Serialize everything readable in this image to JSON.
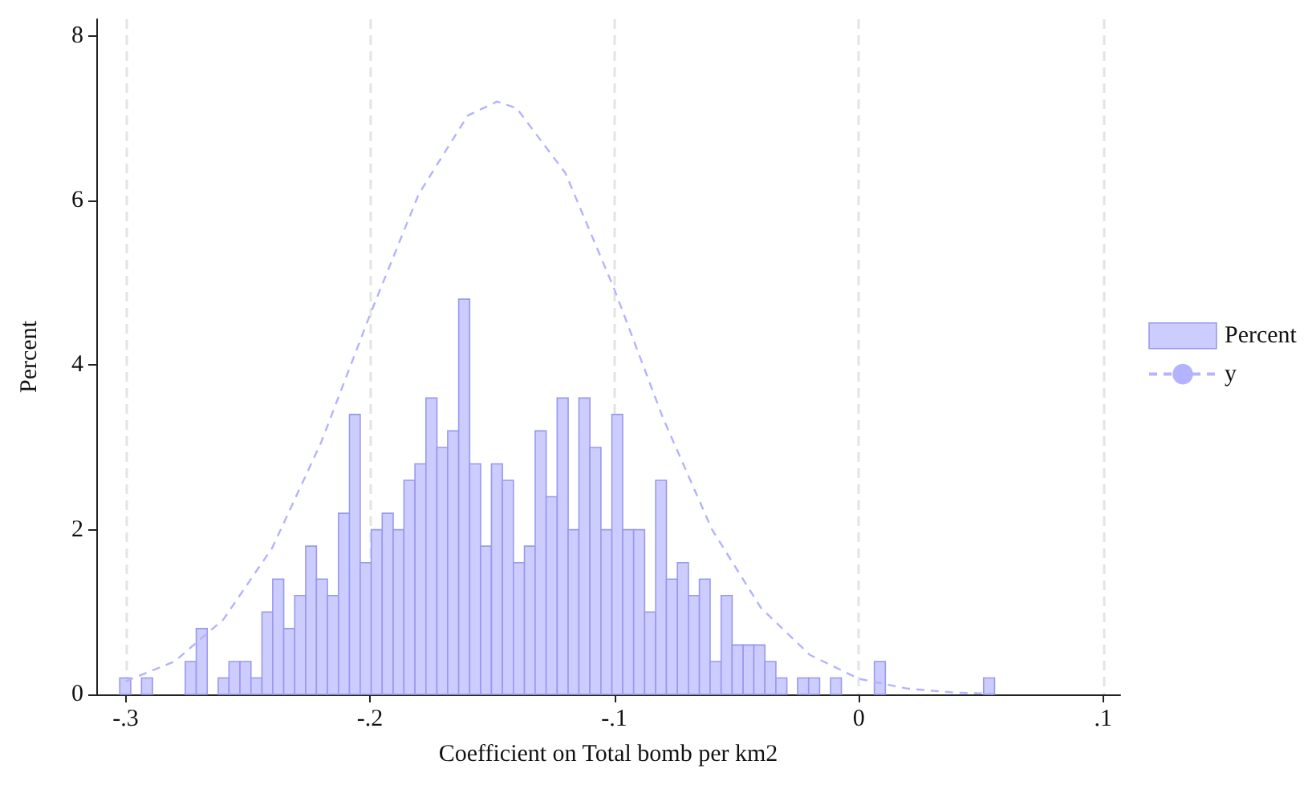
{
  "chart_data": {
    "type": "histogram",
    "xlabel": "Coefficient on Total bomb per km2",
    "ylabel": "Percent",
    "bins": [
      -0.3024,
      -0.2979,
      -0.2935,
      -0.289,
      -0.2845,
      -0.28,
      -0.2756,
      -0.2711,
      -0.2666,
      -0.2621,
      -0.2577,
      -0.2532,
      -0.2487,
      -0.2442,
      -0.2398,
      -0.2353,
      -0.2308,
      -0.2263,
      -0.2219,
      -0.2174,
      -0.2129,
      -0.2084,
      -0.204,
      -0.1995,
      -0.195,
      -0.1905,
      -0.1861,
      -0.1816,
      -0.1771,
      -0.1726,
      -0.1682,
      -0.1637,
      -0.1592,
      -0.1547,
      -0.1503,
      -0.1458,
      -0.1413,
      -0.1368,
      -0.1324,
      -0.1279,
      -0.1234,
      -0.1189,
      -0.1145,
      -0.11,
      -0.1055,
      -0.101,
      -0.0966,
      -0.0921,
      -0.0876,
      -0.0831,
      -0.0787,
      -0.0742,
      -0.0697,
      -0.0652,
      -0.0608,
      -0.0563,
      -0.0518,
      -0.0473,
      -0.0429,
      -0.0384,
      -0.0339,
      -0.0294,
      -0.025,
      -0.0205,
      -0.016,
      -0.0115,
      -0.0071,
      -0.0026,
      0.0019,
      0.0064,
      0.0109,
      0.0153,
      0.0198,
      0.0243,
      0.0288,
      0.0332,
      0.0377,
      0.0422,
      0.0467,
      0.0511,
      0.0556
    ],
    "series": [
      {
        "name": "Percent",
        "color": "#ccccff",
        "values": [
          0.2,
          0,
          0.2,
          0,
          0,
          0,
          0.4,
          0.8,
          0,
          0.2,
          0.4,
          0.4,
          0.2,
          1.0,
          1.4,
          0.8,
          1.2,
          1.8,
          1.4,
          1.2,
          2.2,
          3.4,
          1.6,
          2.0,
          2.2,
          2.0,
          2.6,
          2.8,
          3.6,
          3.0,
          3.2,
          4.8,
          2.8,
          1.8,
          2.8,
          2.6,
          1.6,
          1.8,
          3.2,
          2.4,
          3.6,
          2.0,
          3.6,
          3.0,
          2.0,
          3.4,
          2.0,
          2.0,
          1.0,
          2.6,
          1.4,
          1.6,
          1.2,
          1.4,
          0.4,
          1.2,
          0.6,
          0.6,
          0.6,
          0.4,
          0.2,
          0,
          0.2,
          0.2,
          0,
          0.2,
          0,
          0,
          0,
          0.4,
          0,
          0,
          0,
          0,
          0,
          0,
          0,
          0,
          0,
          0.2
        ]
      },
      {
        "name": "y",
        "type": "line",
        "color": "#b3b3ff",
        "x": [
          -0.3,
          -0.28,
          -0.26,
          -0.24,
          -0.22,
          -0.2,
          -0.18,
          -0.16,
          -0.148,
          -0.14,
          -0.12,
          -0.1,
          -0.08,
          -0.06,
          -0.04,
          -0.02,
          0.0,
          0.02,
          0.04,
          0.055
        ],
        "values": [
          0.16,
          0.4,
          0.91,
          1.78,
          3.06,
          4.61,
          6.08,
          7.03,
          7.2,
          7.12,
          6.33,
          4.92,
          3.35,
          2.0,
          1.05,
          0.48,
          0.19,
          0.07,
          0.02,
          0.01
        ]
      }
    ],
    "xlim": [
      -0.312,
      0.107
    ],
    "xticks": [
      {
        "value": -0.3,
        "label": "-.3"
      },
      {
        "value": -0.2,
        "label": "-.2"
      },
      {
        "value": -0.1,
        "label": "-.1"
      },
      {
        "value": 0,
        "label": "0"
      },
      {
        "value": 0.1,
        "label": ".1"
      }
    ],
    "ylim": [
      0,
      8.2
    ],
    "yticks": [
      0,
      2,
      4,
      6,
      8
    ],
    "grid": "x",
    "legend": "right",
    "marker": "none",
    "line_style": "dashed"
  }
}
